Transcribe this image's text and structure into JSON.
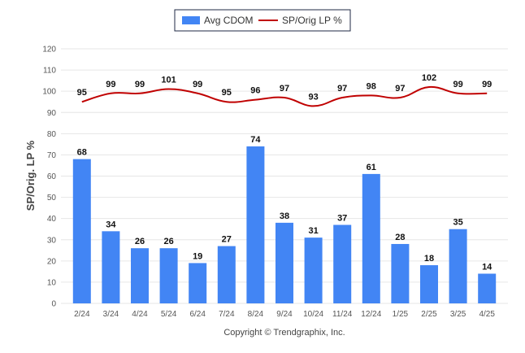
{
  "chart_data": {
    "type": "bar",
    "categories": [
      "2/24",
      "3/24",
      "4/24",
      "5/24",
      "6/24",
      "7/24",
      "8/24",
      "9/24",
      "10/24",
      "11/24",
      "12/24",
      "1/25",
      "2/25",
      "3/25",
      "4/25"
    ],
    "series": [
      {
        "name": "Avg CDOM",
        "type": "bar",
        "color": "#4285f4",
        "values": [
          68,
          34,
          26,
          26,
          19,
          27,
          74,
          38,
          31,
          37,
          61,
          28,
          18,
          35,
          14
        ]
      },
      {
        "name": "SP/Orig LP %",
        "type": "line",
        "color": "#c00000",
        "values": [
          95,
          99,
          99,
          101,
          99,
          95,
          96,
          97,
          93,
          97,
          98,
          97,
          102,
          99,
          99
        ]
      }
    ],
    "ylabel": "SP/Orig. LP %",
    "ylim": [
      0,
      120
    ],
    "yticks": [
      0,
      10,
      20,
      30,
      40,
      50,
      60,
      70,
      80,
      90,
      100,
      110,
      120
    ],
    "grid": true,
    "legend_position": "top-center",
    "footer": "Copyright © Trendgraphix, Inc."
  }
}
